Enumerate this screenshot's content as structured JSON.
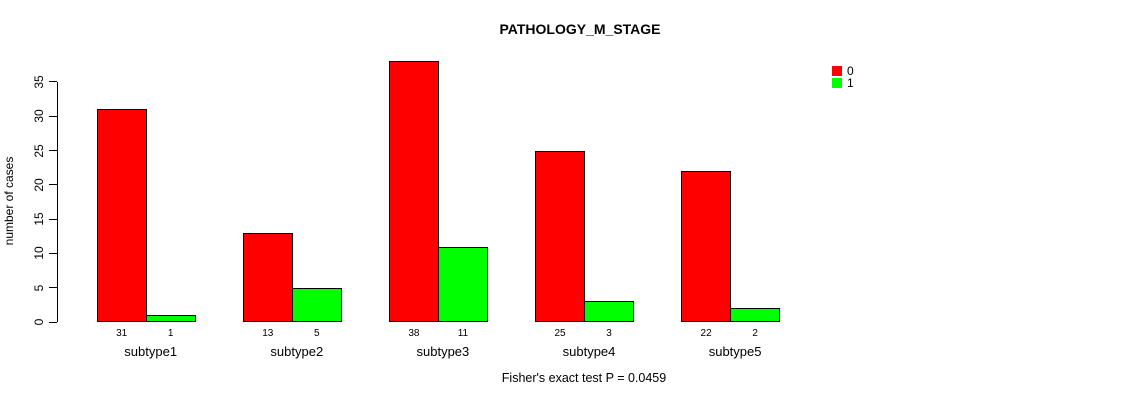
{
  "title": "PATHOLOGY_M_STAGE",
  "y_axis": {
    "label": "number of cases",
    "ticks": [
      0,
      5,
      10,
      15,
      20,
      25,
      30,
      35
    ]
  },
  "legend": [
    {
      "label": "0",
      "color": "#ff0000"
    },
    {
      "label": "1",
      "color": "#00ff00"
    }
  ],
  "footer": "Fisher's exact test P = 0.0459",
  "chart_data": {
    "type": "bar",
    "title": "PATHOLOGY_M_STAGE",
    "categories": [
      "subtype1",
      "subtype2",
      "subtype3",
      "subtype4",
      "subtype5"
    ],
    "series": [
      {
        "name": "0",
        "color": "#ff0000",
        "values": [
          31,
          13,
          38,
          25,
          22
        ]
      },
      {
        "name": "1",
        "color": "#00ff00",
        "values": [
          1,
          5,
          11,
          3,
          2
        ]
      }
    ],
    "xlabel": "",
    "ylabel": "number of cases",
    "ylim": [
      0,
      35
    ],
    "grid": false,
    "legend_position": "top-right",
    "value_labels": true,
    "annotation": "Fisher's exact test P = 0.0459"
  }
}
